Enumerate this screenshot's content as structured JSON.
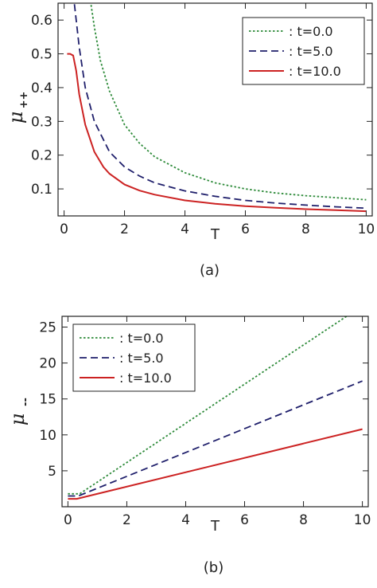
{
  "chart_data": [
    {
      "type": "line",
      "caption": "(a)",
      "xlabel": "T",
      "ylabel": "μ",
      "ylabel_subscript": "++",
      "xlim": [
        -0.2,
        10.2
      ],
      "ylim": [
        0.02,
        0.65
      ],
      "xticks": [
        "0",
        "2",
        "4",
        "6",
        "8",
        "10"
      ],
      "yticks": [
        "0.1",
        "0.2",
        "0.3",
        "0.4",
        "0.5",
        "0.6"
      ],
      "legend_position": "top-right",
      "series": [
        {
          "name": ": t=0.0",
          "color": "#2e8b3a",
          "dash": "dotted",
          "x": [
            0.85,
            0.9,
            1.0,
            1.2,
            1.5,
            2,
            2.5,
            3,
            4,
            5,
            6,
            7,
            8,
            9,
            10
          ],
          "y": [
            0.68,
            0.64,
            0.58,
            0.48,
            0.39,
            0.29,
            0.235,
            0.195,
            0.148,
            0.118,
            0.1,
            0.088,
            0.08,
            0.074,
            0.068
          ]
        },
        {
          "name": ": t=5.0",
          "color": "#1f1f6b",
          "dash": "dashed",
          "x": [
            0.3,
            0.4,
            0.5,
            0.7,
            1.0,
            1.5,
            2,
            2.5,
            3,
            4,
            5,
            6,
            7,
            8,
            9,
            10
          ],
          "y": [
            0.68,
            0.6,
            0.52,
            0.4,
            0.3,
            0.21,
            0.165,
            0.138,
            0.118,
            0.094,
            0.078,
            0.066,
            0.058,
            0.052,
            0.047,
            0.043
          ]
        },
        {
          "name": ": t=10.0",
          "color": "#cc2222",
          "dash": "solid",
          "x": [
            0.1,
            0.2,
            0.3,
            0.4,
            0.5,
            0.7,
            1.0,
            1.3,
            1.5,
            2,
            2.5,
            3,
            4,
            5,
            6,
            7,
            8,
            9,
            10
          ],
          "y": [
            0.5,
            0.5,
            0.495,
            0.45,
            0.38,
            0.29,
            0.21,
            0.165,
            0.145,
            0.113,
            0.095,
            0.083,
            0.066,
            0.056,
            0.049,
            0.044,
            0.04,
            0.037,
            0.034
          ]
        }
      ]
    },
    {
      "type": "line",
      "caption": "(b)",
      "xlabel": "T",
      "ylabel": "μ",
      "ylabel_subscript": "--",
      "xlim": [
        -0.2,
        10.2
      ],
      "ylim": [
        0,
        26.5
      ],
      "xticks": [
        "0",
        "2",
        "4",
        "6",
        "8",
        "10"
      ],
      "yticks": [
        "5",
        "10",
        "15",
        "20",
        "25"
      ],
      "legend_position": "top-left",
      "series": [
        {
          "name": ": t=0.0",
          "color": "#2e8b3a",
          "dash": "dotted",
          "x": [
            0,
            0.4,
            9.5
          ],
          "y": [
            1.8,
            1.8,
            26.6
          ]
        },
        {
          "name": ": t=5.0",
          "color": "#1f1f6b",
          "dash": "dashed",
          "x": [
            0,
            0.35,
            10
          ],
          "y": [
            1.5,
            1.5,
            17.5
          ]
        },
        {
          "name": ": t=10.0",
          "color": "#cc2222",
          "dash": "solid",
          "x": [
            0,
            0.3,
            10
          ],
          "y": [
            1.1,
            1.1,
            10.8
          ]
        }
      ]
    }
  ]
}
